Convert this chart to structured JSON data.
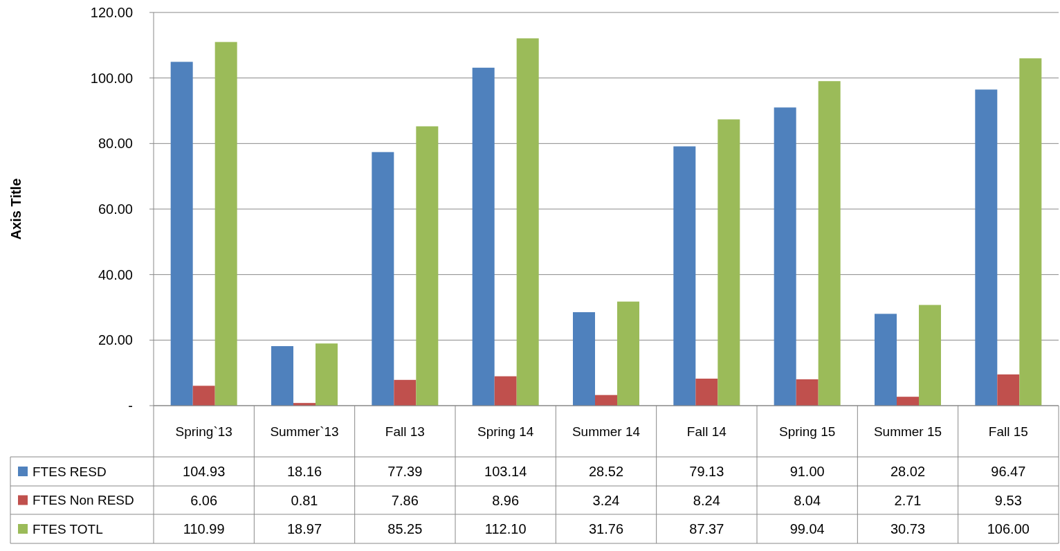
{
  "chart_data": {
    "type": "bar",
    "ylabel": "Axis Title",
    "categories": [
      "Spring`13",
      "Summer`13",
      "Fall 13",
      "Spring 14",
      "Summer 14",
      "Fall 14",
      "Spring 15",
      "Summer 15",
      "Fall 15"
    ],
    "series": [
      {
        "name": "FTES RESD",
        "color": "#4f81bd",
        "values": [
          104.93,
          18.16,
          77.39,
          103.14,
          28.52,
          79.13,
          91.0,
          28.02,
          96.47
        ],
        "value_labels": [
          "104.93",
          "18.16",
          "77.39",
          "103.14",
          "28.52",
          "79.13",
          "91.00",
          "28.02",
          "96.47"
        ]
      },
      {
        "name": "FTES Non RESD",
        "color": "#c0504d",
        "values": [
          6.06,
          0.81,
          7.86,
          8.96,
          3.24,
          8.24,
          8.04,
          2.71,
          9.53
        ],
        "value_labels": [
          "6.06",
          "0.81",
          "7.86",
          "8.96",
          "3.24",
          "8.24",
          "8.04",
          "2.71",
          "9.53"
        ]
      },
      {
        "name": "FTES TOTL",
        "color": "#9bbb59",
        "values": [
          110.99,
          18.97,
          85.25,
          112.1,
          31.76,
          87.37,
          99.04,
          30.73,
          106.0
        ],
        "value_labels": [
          "110.99",
          "18.97",
          "85.25",
          "112.10",
          "31.76",
          "87.37",
          "99.04",
          "30.73",
          "106.00"
        ]
      }
    ],
    "ylim": [
      0,
      120
    ],
    "yticks": [
      {
        "value": 0,
        "label": "-"
      },
      {
        "value": 20,
        "label": "20.00"
      },
      {
        "value": 40,
        "label": "40.00"
      },
      {
        "value": 60,
        "label": "60.00"
      },
      {
        "value": 80,
        "label": "80.00"
      },
      {
        "value": 100,
        "label": "100.00"
      },
      {
        "value": 120,
        "label": "120.00"
      }
    ],
    "grid": "y",
    "legend": "bottom"
  }
}
